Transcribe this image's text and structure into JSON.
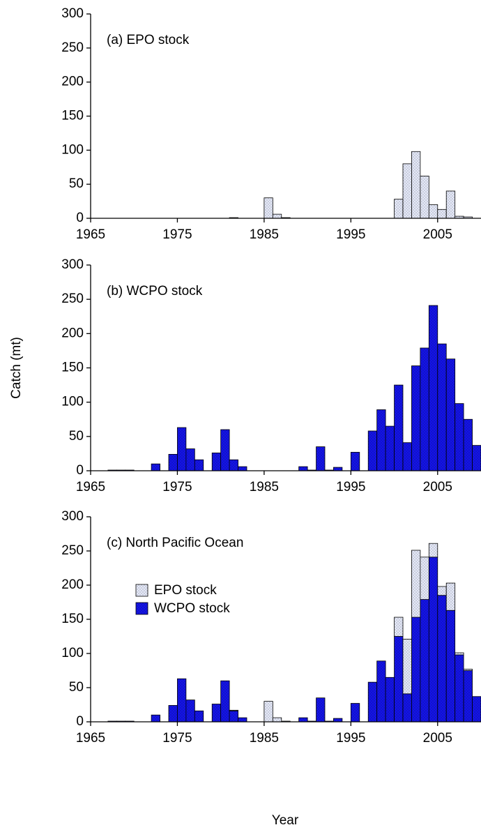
{
  "chart_data": [
    {
      "type": "bar",
      "title": "(a) EPO stock",
      "x": [
        1965,
        1966,
        1967,
        1968,
        1969,
        1970,
        1971,
        1972,
        1973,
        1974,
        1975,
        1976,
        1977,
        1978,
        1979,
        1980,
        1981,
        1982,
        1983,
        1984,
        1985,
        1986,
        1987,
        1988,
        1989,
        1990,
        1991,
        1992,
        1993,
        1994,
        1995,
        1996,
        1997,
        1998,
        1999,
        2000,
        2001,
        2002,
        2003,
        2004,
        2005,
        2006,
        2007,
        2008,
        2009
      ],
      "values": [
        0,
        0,
        0,
        0,
        0,
        0,
        0,
        0,
        0,
        0,
        0,
        0,
        0,
        0,
        0,
        0,
        1,
        0,
        0,
        0,
        30,
        6,
        1,
        0,
        0,
        0,
        0,
        0,
        0,
        0,
        0,
        0,
        0,
        0,
        0,
        28,
        80,
        98,
        62,
        20,
        13,
        40,
        3,
        2,
        0
      ],
      "color": "#e4e8f8",
      "xlim": [
        1965,
        2010
      ],
      "xticks": [
        1965,
        1975,
        1985,
        1995,
        2005
      ],
      "ylim": [
        0,
        300
      ],
      "yticks": [
        0,
        50,
        100,
        150,
        200,
        250,
        300
      ]
    },
    {
      "type": "bar",
      "title": "(b) WCPO stock",
      "ylabel": "Catch (mt)",
      "x": [
        1965,
        1966,
        1967,
        1968,
        1969,
        1970,
        1971,
        1972,
        1973,
        1974,
        1975,
        1976,
        1977,
        1978,
        1979,
        1980,
        1981,
        1982,
        1983,
        1984,
        1985,
        1986,
        1987,
        1988,
        1989,
        1990,
        1991,
        1992,
        1993,
        1994,
        1995,
        1996,
        1997,
        1998,
        1999,
        2000,
        2001,
        2002,
        2003,
        2004,
        2005,
        2006,
        2007,
        2008,
        2009
      ],
      "values": [
        0,
        0,
        1,
        1,
        1,
        0,
        0,
        10,
        0,
        24,
        63,
        32,
        16,
        0,
        26,
        60,
        16,
        6,
        0,
        0,
        0,
        0,
        0,
        0,
        6,
        1,
        35,
        1,
        5,
        0,
        27,
        0,
        58,
        89,
        65,
        125,
        41,
        153,
        179,
        241,
        185,
        163,
        98,
        75,
        37
      ],
      "color": "#1414e6",
      "xlim": [
        1965,
        2010
      ],
      "xticks": [
        1965,
        1975,
        1985,
        1995,
        2005
      ],
      "ylim": [
        0,
        300
      ],
      "yticks": [
        0,
        50,
        100,
        150,
        200,
        250,
        300
      ]
    },
    {
      "type": "bar",
      "title": "(c) North Pacific Ocean",
      "xlabel": "Year",
      "stacked": true,
      "legend": "upper left",
      "x": [
        1965,
        1966,
        1967,
        1968,
        1969,
        1970,
        1971,
        1972,
        1973,
        1974,
        1975,
        1976,
        1977,
        1978,
        1979,
        1980,
        1981,
        1982,
        1983,
        1984,
        1985,
        1986,
        1987,
        1988,
        1989,
        1990,
        1991,
        1992,
        1993,
        1994,
        1995,
        1996,
        1997,
        1998,
        1999,
        2000,
        2001,
        2002,
        2003,
        2004,
        2005,
        2006,
        2007,
        2008,
        2009
      ],
      "series": [
        {
          "name": "EPO stock",
          "color": "#e4e8f8",
          "values": [
            0,
            0,
            0,
            0,
            0,
            0,
            0,
            0,
            0,
            0,
            0,
            0,
            0,
            0,
            0,
            0,
            1,
            0,
            0,
            0,
            30,
            6,
            1,
            0,
            0,
            0,
            0,
            0,
            0,
            0,
            0,
            0,
            0,
            0,
            0,
            28,
            80,
            98,
            62,
            20,
            13,
            40,
            3,
            2,
            0
          ]
        },
        {
          "name": "WCPO stock",
          "color": "#1414e6",
          "values": [
            0,
            0,
            1,
            1,
            1,
            0,
            0,
            10,
            0,
            24,
            63,
            32,
            16,
            0,
            26,
            60,
            16,
            6,
            0,
            0,
            0,
            0,
            0,
            0,
            6,
            1,
            35,
            1,
            5,
            0,
            27,
            0,
            58,
            89,
            65,
            125,
            41,
            153,
            179,
            241,
            185,
            163,
            98,
            75,
            37
          ]
        }
      ],
      "xlim": [
        1965,
        2010
      ],
      "xticks": [
        1965,
        1975,
        1985,
        1995,
        2005
      ],
      "ylim": [
        0,
        300
      ],
      "yticks": [
        0,
        50,
        100,
        150,
        200,
        250,
        300
      ]
    }
  ]
}
